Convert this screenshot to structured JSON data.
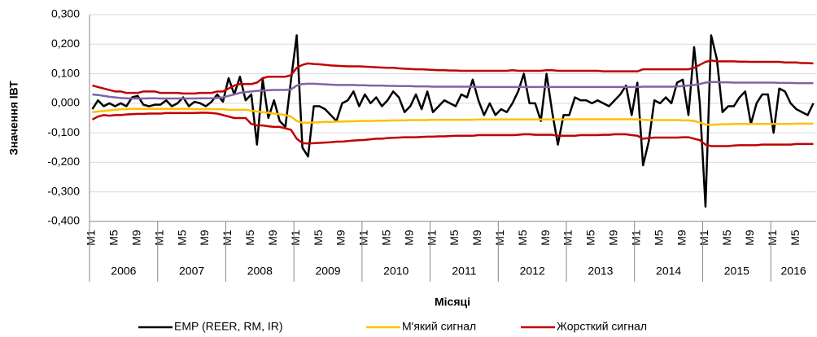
{
  "chart_data": {
    "type": "line",
    "y_label": "Значення ІВТ",
    "x_label": "Місяці",
    "ylim": [
      -0.4,
      0.3
    ],
    "yticks": [
      {
        "value": -0.4,
        "label": "-0,400"
      },
      {
        "value": -0.3,
        "label": "-0,300"
      },
      {
        "value": -0.2,
        "label": "-0,200"
      },
      {
        "value": -0.1,
        "label": "-0,100"
      },
      {
        "value": 0,
        "label": "0,000"
      },
      {
        "value": 0.1,
        "label": "0,100"
      },
      {
        "value": 0.2,
        "label": "0,200"
      },
      {
        "value": 0.3,
        "label": "0,300"
      }
    ],
    "grid": true,
    "legend": "bottom",
    "years": [
      "2006",
      "2007",
      "2008",
      "2009",
      "2010",
      "2011",
      "2012",
      "2013",
      "2014",
      "2015",
      "2016"
    ],
    "categories": [
      "M1",
      null,
      null,
      null,
      "M5",
      null,
      null,
      null,
      "M9",
      null,
      null,
      null,
      "M1",
      null,
      null,
      null,
      "M5",
      null,
      null,
      null,
      "M9",
      null,
      null,
      null,
      "M1",
      null,
      null,
      null,
      "M5",
      null,
      null,
      null,
      "M9",
      null,
      null,
      null,
      "M1",
      null,
      null,
      null,
      "M5",
      null,
      null,
      null,
      "M9",
      null,
      null,
      null,
      "M1",
      null,
      null,
      null,
      "M5",
      null,
      null,
      null,
      "M9",
      null,
      null,
      null,
      "M1",
      null,
      null,
      null,
      "M5",
      null,
      null,
      null,
      "M9",
      null,
      null,
      null,
      "M1",
      null,
      null,
      null,
      "M5",
      null,
      null,
      null,
      "M9",
      null,
      null,
      null,
      "M1",
      null,
      null,
      null,
      "M5",
      null,
      null,
      null,
      "M9",
      null,
      null,
      null,
      "M1",
      null,
      null,
      null,
      "M5",
      null,
      null,
      null,
      "M9",
      null,
      null,
      null,
      "M1",
      null,
      null,
      null,
      "M5",
      null,
      null,
      null,
      "M9",
      null,
      null,
      null,
      "M1",
      null,
      null,
      null,
      "M5",
      null,
      null,
      null
    ],
    "series": [
      {
        "name": "EMP (REER, RM, IR)",
        "color": "#000000",
        "values": [
          -0.02,
          0.01,
          -0.01,
          0.0,
          -0.01,
          0.0,
          -0.01,
          0.02,
          0.025,
          -0.005,
          -0.01,
          -0.005,
          -0.005,
          0.01,
          -0.01,
          0.0,
          0.02,
          -0.01,
          0.005,
          0.0,
          -0.01,
          0.005,
          0.03,
          0.005,
          0.085,
          0.03,
          0.09,
          0.01,
          0.03,
          -0.14,
          0.08,
          -0.05,
          0.01,
          -0.06,
          -0.08,
          0.08,
          0.23,
          -0.15,
          -0.18,
          -0.01,
          -0.01,
          -0.02,
          -0.04,
          -0.06,
          0.0,
          0.01,
          0.04,
          -0.01,
          0.03,
          0.0,
          0.02,
          -0.01,
          0.01,
          0.04,
          0.02,
          -0.03,
          -0.01,
          0.03,
          -0.02,
          0.04,
          -0.03,
          -0.01,
          0.01,
          0.0,
          -0.01,
          0.03,
          0.02,
          0.08,
          0.01,
          -0.04,
          0.0,
          -0.04,
          -0.02,
          -0.03,
          0.0,
          0.04,
          0.1,
          0.0,
          0.0,
          -0.06,
          0.1,
          -0.03,
          -0.14,
          -0.04,
          -0.04,
          0.02,
          0.01,
          0.01,
          0.0,
          0.01,
          0.0,
          -0.01,
          0.01,
          0.03,
          0.06,
          -0.04,
          0.07,
          -0.21,
          -0.13,
          0.01,
          0.0,
          0.02,
          0.0,
          0.07,
          0.08,
          -0.04,
          0.19,
          0.0,
          -0.35,
          0.23,
          0.15,
          -0.03,
          -0.01,
          -0.01,
          0.02,
          0.04,
          -0.07,
          0.0,
          0.03,
          0.03,
          -0.1,
          0.05,
          0.04,
          0.0,
          -0.02,
          -0.03,
          -0.04,
          0.0
        ]
      },
      {
        "name": "М'який сигнал",
        "color": "#ffc000",
        "upper_color": "#8064a2",
        "upper": [
          0.03,
          0.028,
          0.025,
          0.022,
          0.02,
          0.018,
          0.017,
          0.016,
          0.016,
          0.016,
          0.017,
          0.017,
          0.016,
          0.016,
          0.016,
          0.016,
          0.016,
          0.016,
          0.016,
          0.017,
          0.017,
          0.017,
          0.018,
          0.02,
          0.025,
          0.03,
          0.035,
          0.038,
          0.04,
          0.042,
          0.043,
          0.044,
          0.045,
          0.045,
          0.045,
          0.047,
          0.06,
          0.065,
          0.066,
          0.066,
          0.065,
          0.064,
          0.063,
          0.062,
          0.062,
          0.062,
          0.062,
          0.061,
          0.061,
          0.06,
          0.06,
          0.06,
          0.059,
          0.059,
          0.058,
          0.058,
          0.058,
          0.057,
          0.057,
          0.057,
          0.056,
          0.056,
          0.056,
          0.056,
          0.056,
          0.056,
          0.056,
          0.056,
          0.055,
          0.055,
          0.055,
          0.055,
          0.055,
          0.055,
          0.055,
          0.055,
          0.055,
          0.055,
          0.055,
          0.055,
          0.055,
          0.055,
          0.055,
          0.055,
          0.055,
          0.055,
          0.055,
          0.055,
          0.055,
          0.055,
          0.055,
          0.055,
          0.055,
          0.055,
          0.055,
          0.055,
          0.055,
          0.056,
          0.056,
          0.056,
          0.056,
          0.056,
          0.056,
          0.057,
          0.058,
          0.06,
          0.062,
          0.065,
          0.07,
          0.072,
          0.072,
          0.071,
          0.071,
          0.07,
          0.07,
          0.07,
          0.07,
          0.07,
          0.07,
          0.07,
          0.07,
          0.069,
          0.069,
          0.069,
          0.068,
          0.068,
          0.068,
          0.068
        ],
        "lower": [
          -0.03,
          -0.028,
          -0.026,
          -0.024,
          -0.022,
          -0.02,
          -0.02,
          -0.019,
          -0.019,
          -0.019,
          -0.019,
          -0.019,
          -0.019,
          -0.019,
          -0.019,
          -0.019,
          -0.019,
          -0.019,
          -0.02,
          -0.02,
          -0.02,
          -0.02,
          -0.02,
          -0.02,
          -0.022,
          -0.022,
          -0.022,
          -0.022,
          -0.025,
          -0.028,
          -0.03,
          -0.032,
          -0.035,
          -0.037,
          -0.04,
          -0.045,
          -0.06,
          -0.066,
          -0.066,
          -0.065,
          -0.064,
          -0.063,
          -0.063,
          -0.062,
          -0.062,
          -0.061,
          -0.061,
          -0.06,
          -0.06,
          -0.06,
          -0.059,
          -0.059,
          -0.059,
          -0.058,
          -0.058,
          -0.058,
          -0.057,
          -0.057,
          -0.057,
          -0.057,
          -0.056,
          -0.056,
          -0.056,
          -0.056,
          -0.056,
          -0.056,
          -0.056,
          -0.056,
          -0.055,
          -0.055,
          -0.055,
          -0.055,
          -0.055,
          -0.055,
          -0.055,
          -0.055,
          -0.055,
          -0.055,
          -0.055,
          -0.055,
          -0.055,
          -0.055,
          -0.055,
          -0.055,
          -0.054,
          -0.054,
          -0.054,
          -0.054,
          -0.054,
          -0.054,
          -0.054,
          -0.054,
          -0.054,
          -0.054,
          -0.054,
          -0.054,
          -0.055,
          -0.056,
          -0.057,
          -0.057,
          -0.057,
          -0.057,
          -0.057,
          -0.057,
          -0.058,
          -0.058,
          -0.06,
          -0.065,
          -0.072,
          -0.073,
          -0.072,
          -0.071,
          -0.071,
          -0.07,
          -0.07,
          -0.07,
          -0.07,
          -0.07,
          -0.07,
          -0.07,
          -0.07,
          -0.07,
          -0.07,
          -0.07,
          -0.069,
          -0.069,
          -0.069,
          -0.069
        ]
      },
      {
        "name": "Жорсткий сигнал",
        "color": "#c00000",
        "upper": [
          0.06,
          0.055,
          0.05,
          0.045,
          0.04,
          0.04,
          0.035,
          0.035,
          0.035,
          0.04,
          0.04,
          0.04,
          0.035,
          0.035,
          0.035,
          0.035,
          0.033,
          0.033,
          0.033,
          0.035,
          0.035,
          0.035,
          0.04,
          0.04,
          0.05,
          0.06,
          0.065,
          0.065,
          0.065,
          0.07,
          0.085,
          0.09,
          0.09,
          0.09,
          0.09,
          0.095,
          0.12,
          0.13,
          0.135,
          0.133,
          0.132,
          0.13,
          0.128,
          0.127,
          0.126,
          0.125,
          0.125,
          0.125,
          0.124,
          0.123,
          0.122,
          0.121,
          0.12,
          0.12,
          0.118,
          0.117,
          0.116,
          0.115,
          0.115,
          0.114,
          0.113,
          0.112,
          0.112,
          0.111,
          0.111,
          0.11,
          0.11,
          0.11,
          0.11,
          0.11,
          0.11,
          0.11,
          0.11,
          0.11,
          0.112,
          0.11,
          0.11,
          0.11,
          0.11,
          0.11,
          0.112,
          0.112,
          0.11,
          0.11,
          0.11,
          0.11,
          0.11,
          0.11,
          0.11,
          0.11,
          0.108,
          0.108,
          0.108,
          0.108,
          0.108,
          0.108,
          0.108,
          0.115,
          0.115,
          0.115,
          0.115,
          0.115,
          0.115,
          0.115,
          0.115,
          0.115,
          0.12,
          0.13,
          0.14,
          0.145,
          0.142,
          0.142,
          0.142,
          0.142,
          0.141,
          0.141,
          0.14,
          0.14,
          0.14,
          0.14,
          0.14,
          0.14,
          0.138,
          0.138,
          0.138,
          0.136,
          0.136,
          0.135
        ],
        "lower": [
          -0.055,
          -0.045,
          -0.04,
          -0.042,
          -0.04,
          -0.04,
          -0.038,
          -0.037,
          -0.036,
          -0.036,
          -0.035,
          -0.035,
          -0.035,
          -0.033,
          -0.033,
          -0.033,
          -0.033,
          -0.033,
          -0.033,
          -0.032,
          -0.032,
          -0.033,
          -0.035,
          -0.04,
          -0.045,
          -0.05,
          -0.05,
          -0.05,
          -0.07,
          -0.075,
          -0.075,
          -0.078,
          -0.08,
          -0.08,
          -0.085,
          -0.09,
          -0.12,
          -0.135,
          -0.136,
          -0.135,
          -0.134,
          -0.133,
          -0.132,
          -0.13,
          -0.13,
          -0.128,
          -0.126,
          -0.125,
          -0.124,
          -0.122,
          -0.12,
          -0.12,
          -0.118,
          -0.117,
          -0.116,
          -0.115,
          -0.115,
          -0.115,
          -0.114,
          -0.113,
          -0.113,
          -0.112,
          -0.112,
          -0.111,
          -0.11,
          -0.11,
          -0.11,
          -0.11,
          -0.108,
          -0.108,
          -0.108,
          -0.108,
          -0.108,
          -0.108,
          -0.108,
          -0.107,
          -0.105,
          -0.105,
          -0.107,
          -0.107,
          -0.107,
          -0.107,
          -0.11,
          -0.11,
          -0.11,
          -0.11,
          -0.108,
          -0.108,
          -0.108,
          -0.108,
          -0.107,
          -0.107,
          -0.105,
          -0.105,
          -0.105,
          -0.108,
          -0.11,
          -0.12,
          -0.118,
          -0.116,
          -0.116,
          -0.116,
          -0.116,
          -0.116,
          -0.115,
          -0.115,
          -0.12,
          -0.125,
          -0.14,
          -0.145,
          -0.145,
          -0.145,
          -0.145,
          -0.143,
          -0.142,
          -0.142,
          -0.142,
          -0.142,
          -0.14,
          -0.14,
          -0.14,
          -0.14,
          -0.14,
          -0.14,
          -0.138,
          -0.138,
          -0.138,
          -0.138
        ]
      }
    ]
  }
}
